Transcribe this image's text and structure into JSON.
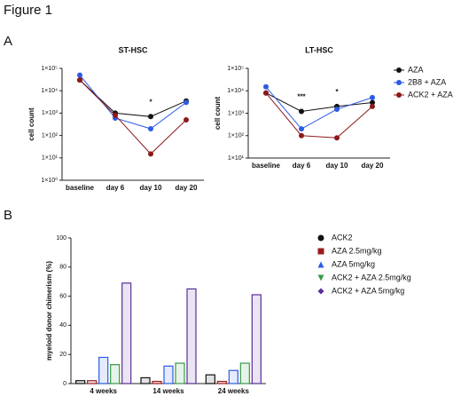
{
  "figure": {
    "title": "Figure 1",
    "panels": [
      "A",
      "B"
    ]
  },
  "chart_data": [
    {
      "type": "line",
      "title": "ST-HSC",
      "ylabel": "cell count",
      "log_y": true,
      "categories": [
        "baseline",
        "day 6",
        "day 10",
        "day 20"
      ],
      "series": [
        {
          "color": "#111111",
          "values": [
            30000,
            1000,
            700,
            3500
          ]
        },
        {
          "color": "#2d5be3",
          "values": [
            50000,
            600,
            200,
            3000
          ]
        },
        {
          "color": "#8b1a1a",
          "values": [
            30000,
            800,
            15,
            500
          ]
        }
      ],
      "ylim": [
        1,
        100000
      ],
      "yticks": [
        {
          "value": 1,
          "label": "1×10⁰"
        },
        {
          "value": 10,
          "label": "1×10¹"
        },
        {
          "value": 100,
          "label": "1×10²"
        },
        {
          "value": 1000,
          "label": "1×10³"
        },
        {
          "value": 10000,
          "label": "1×10⁴"
        },
        {
          "value": 100000,
          "label": "1×10⁵"
        }
      ],
      "annotations": [
        {
          "text": "*",
          "category": "day 10"
        }
      ]
    },
    {
      "type": "line",
      "title": "LT-HSC",
      "ylabel": "cell count",
      "log_y": true,
      "legend": "right",
      "categories": [
        "baseline",
        "day 6",
        "day 10",
        "day 20"
      ],
      "series": [
        {
          "name": "AZA",
          "color": "#111111",
          "values": [
            8000,
            1200,
            2000,
            3000
          ]
        },
        {
          "name": "2B8 + AZA",
          "color": "#2d5be3",
          "values": [
            15000,
            200,
            1500,
            5000
          ]
        },
        {
          "name": "ACK2 + AZA",
          "color": "#8b1a1a",
          "values": [
            8000,
            100,
            80,
            2000
          ]
        }
      ],
      "ylim": [
        10,
        100000
      ],
      "yticks": [
        {
          "value": 10,
          "label": "1×10¹"
        },
        {
          "value": 100,
          "label": "1×10²"
        },
        {
          "value": 1000,
          "label": "1×10³"
        },
        {
          "value": 10000,
          "label": "1×10⁴"
        },
        {
          "value": 100000,
          "label": "1×10⁵"
        }
      ],
      "annotations": [
        {
          "text": "***",
          "category": "day 6"
        },
        {
          "text": "*",
          "category": "day 10"
        }
      ]
    },
    {
      "type": "bar",
      "ylabel": "myeloid donor chimerism (%)",
      "legend": "right",
      "categories": [
        "4 weeks",
        "14 weeks",
        "24 weeks"
      ],
      "series": [
        {
          "name": "ACK2",
          "color": "#111111",
          "marker": "circle",
          "values": [
            2,
            4,
            6
          ]
        },
        {
          "name": "AZA 2.5mg/kg",
          "color": "#9b1c1c",
          "marker": "square",
          "values": [
            2,
            1.5,
            1.5
          ]
        },
        {
          "name": "AZA 5mg/kg",
          "color": "#2d5be3",
          "marker": "triangle",
          "values": [
            18,
            12,
            9
          ]
        },
        {
          "name": "ACK2 + AZA 2.5mg/kg",
          "color": "#3a9a4a",
          "marker": "triangle-down",
          "values": [
            13,
            14,
            14
          ]
        },
        {
          "name": "ACK2 + AZA 5mg/kg",
          "color": "#5a2d9a",
          "marker": "diamond",
          "values": [
            69,
            65,
            61
          ]
        }
      ],
      "ylim": [
        0,
        100
      ],
      "yticks": [
        0,
        20,
        40,
        60,
        80,
        100
      ]
    }
  ]
}
